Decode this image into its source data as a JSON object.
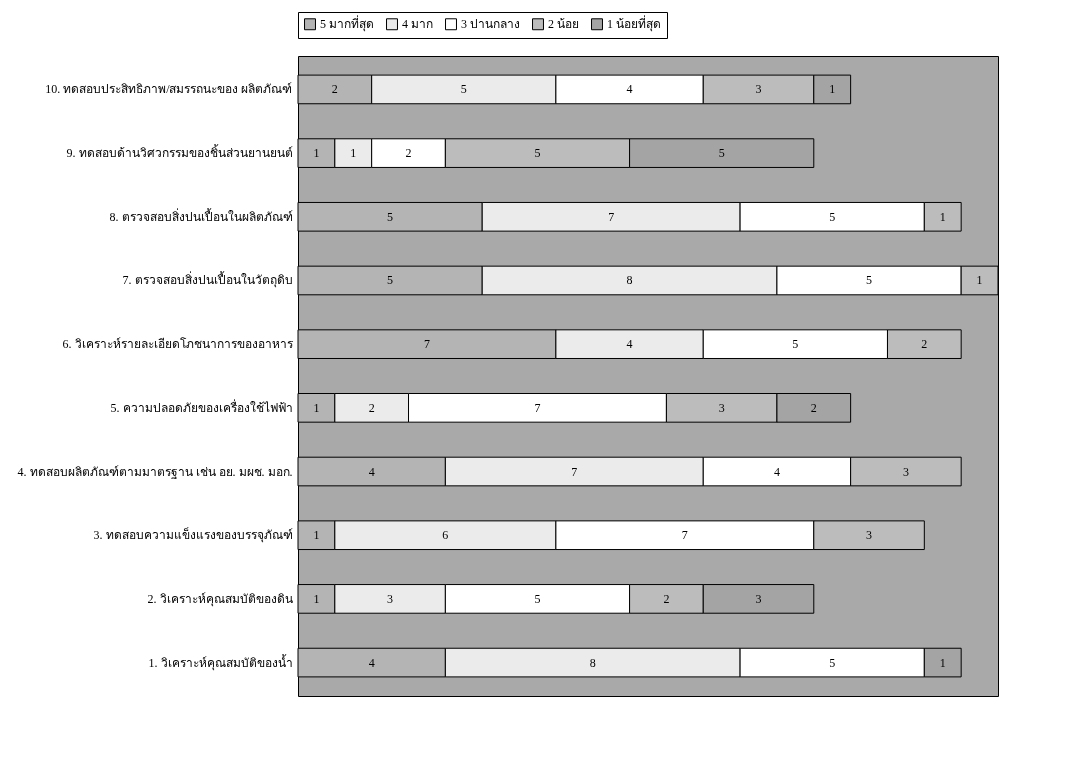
{
  "chart_data": {
    "type": "bar",
    "orientation": "horizontal",
    "stacked": true,
    "data_labels": true,
    "tick_labels": "y",
    "legend": "top",
    "categories": [
      "10. ทดสอบประสิทธิภาพ/สมรรถนะของ ผลิตภัณฑ์",
      "9. ทดสอบด้านวิศวกรรมของชิ้นส่วนยานยนต์",
      "8. ตรวจสอบสิ่งปนเปื้อนในผลิตภัณฑ์",
      "7. ตรวจสอบสิ่งปนเปื้อนในวัตถุดิบ",
      "6. วิเคราะห์รายละเอียดโภชนาการของอาหาร",
      "5. ความปลอดภัยของเครื่องใช้ไฟฟ้า",
      "4. ทดสอบผลิตภัณฑ์ตามมาตรฐาน เช่น อย.   มผช. มอก.",
      "3. ทดสอบความแข็งแรงของบรรจุภัณฑ์",
      "2. วิเคราะห์คุณสมบัติของดิน",
      "1. วิเคราะห์คุณสมบัติของน้ำ"
    ],
    "series": [
      {
        "name": "5 มากที่สุด",
        "color": "#b4b4b4",
        "values": [
          2,
          1,
          5,
          5,
          7,
          1,
          4,
          1,
          1,
          4
        ]
      },
      {
        "name": "4 มาก",
        "color": "#ebebeb",
        "values": [
          5,
          1,
          7,
          8,
          4,
          2,
          7,
          6,
          3,
          8
        ]
      },
      {
        "name": "3 ปานกลาง",
        "color": "#ffffff",
        "values": [
          4,
          2,
          5,
          5,
          5,
          7,
          4,
          7,
          5,
          5
        ]
      },
      {
        "name": "2 น้อย",
        "color": "#bcbcbc",
        "values": [
          3,
          5,
          1,
          1,
          2,
          3,
          3,
          3,
          2,
          null
        ]
      },
      {
        "name": "1 น้อยที่สุด",
        "color": "#a4a4a4",
        "values": [
          1,
          5,
          null,
          null,
          null,
          2,
          null,
          null,
          3,
          1
        ]
      }
    ]
  }
}
